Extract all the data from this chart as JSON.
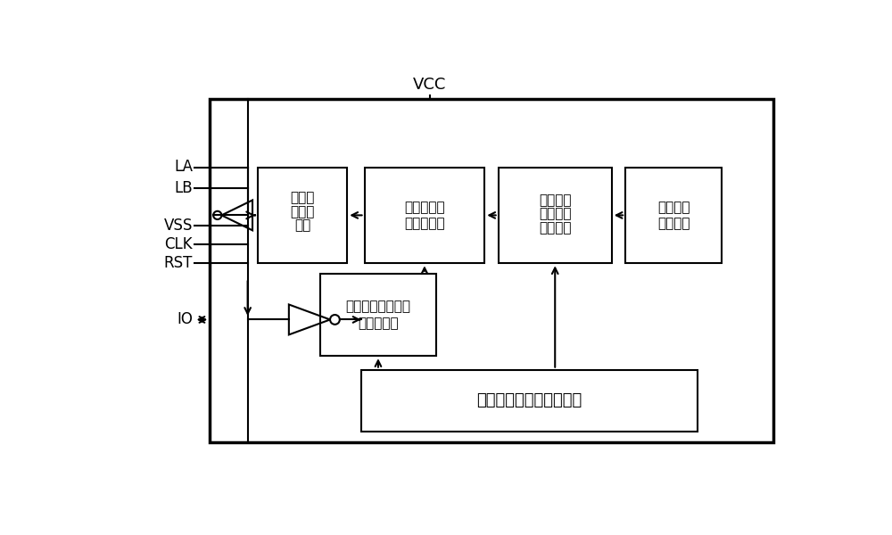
{
  "bg_color": "#ffffff",
  "vcc_label": "VCC",
  "input_labels": [
    "LA",
    "LB",
    "VSS",
    "CLK",
    "RST",
    "IO"
  ],
  "box_labels": {
    "digital_sampling": [
      "数字采",
      "样处理",
      "模块"
    ],
    "sampling_comparator": [
      "取样电阻和",
      "比较器模块"
    ],
    "threshold_register": [
      "判断门限电压选择",
      "控制寄存器"
    ],
    "voltage_select_register": [
      "待检测电",
      "压选通控",
      "制寄存器"
    ],
    "analog_circuit": [
      "待测模拟",
      "电路模块"
    ],
    "test_mode_register": [
      "测试模式选择控制寄存器"
    ]
  }
}
